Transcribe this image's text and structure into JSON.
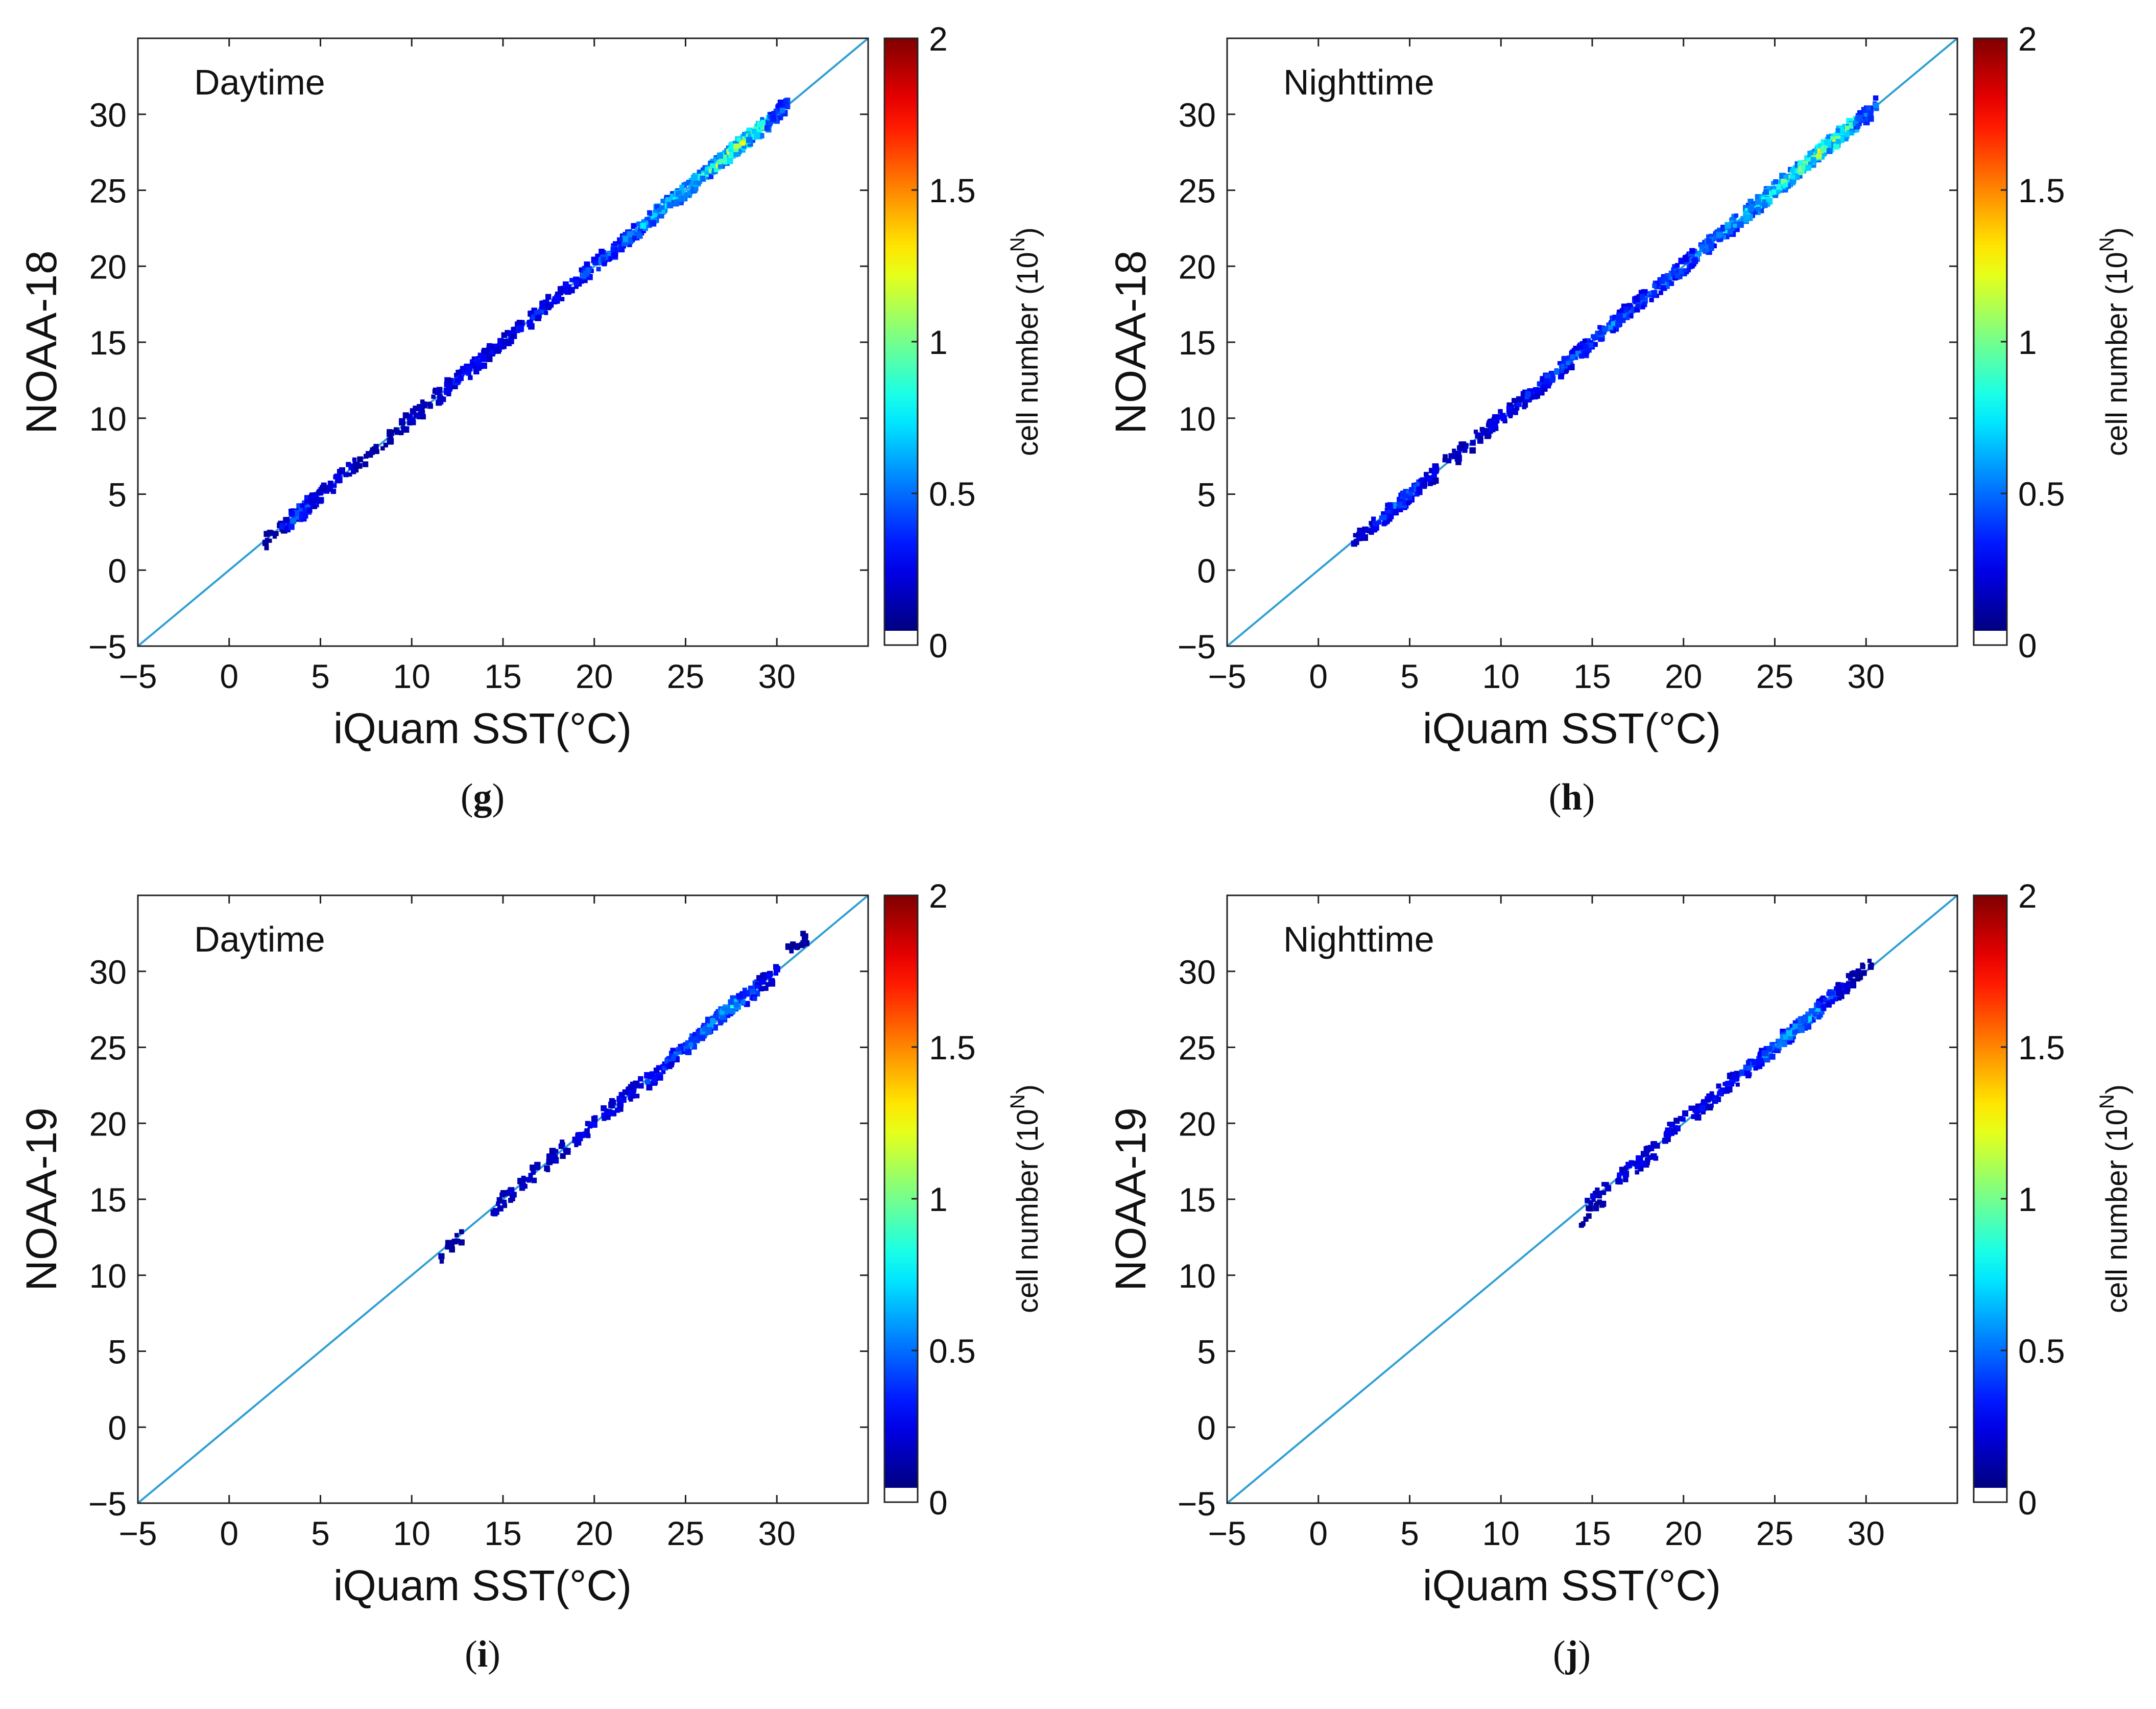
{
  "chart_data": [
    {
      "type": "heatmap",
      "caption": "g",
      "annotation": "Daytime",
      "xlabel": "iQuam SST(°C)",
      "ylabel": "NOAA-18",
      "xlim": [
        -5,
        35
      ],
      "ylim": [
        -5,
        35
      ],
      "xticks": [
        "−5",
        "0",
        "5",
        "10",
        "15",
        "20",
        "25",
        "30"
      ],
      "yticks": [
        "−5",
        "0",
        "5",
        "10",
        "15",
        "20",
        "25",
        "30"
      ],
      "reference_line": "1:1",
      "density_points": [
        [
          2.5,
          2.4,
          0.1
        ],
        [
          3.5,
          3.5,
          0.3
        ],
        [
          4,
          3.9,
          0.6
        ],
        [
          4.5,
          4.4,
          0.5
        ],
        [
          5,
          4.9,
          0.3
        ],
        [
          6.3,
          6.3,
          0.3
        ],
        [
          7.5,
          7.3,
          0.1
        ],
        [
          9,
          8.9,
          0.1
        ],
        [
          10,
          10,
          0.2
        ],
        [
          11,
          11,
          0.2
        ],
        [
          12,
          12,
          0.3
        ],
        [
          13,
          13.1,
          0.4
        ],
        [
          13.5,
          13.4,
          0.4
        ],
        [
          14.5,
          14.5,
          0.3
        ],
        [
          15.5,
          15.5,
          0.3
        ],
        [
          17,
          17,
          0.4
        ],
        [
          18,
          18,
          0.3
        ],
        [
          19,
          19,
          0.4
        ],
        [
          20,
          20,
          0.5
        ],
        [
          21,
          21,
          0.5
        ],
        [
          22,
          22,
          0.6
        ],
        [
          23,
          23,
          0.7
        ],
        [
          24,
          24.1,
          0.8
        ],
        [
          25,
          25,
          0.9
        ],
        [
          26,
          26,
          1.0
        ],
        [
          27,
          27,
          1.2
        ],
        [
          28,
          28,
          1.3
        ],
        [
          29,
          29,
          1.1
        ],
        [
          30,
          30,
          0.6
        ]
      ],
      "colorbar": {
        "label": "cell number (10",
        "superscript": "N",
        "label_end": ")",
        "ticks": [
          "0",
          "0.5",
          "1",
          "1.5",
          "2"
        ],
        "range": [
          0,
          2
        ]
      }
    },
    {
      "type": "heatmap",
      "caption": "h",
      "annotation": "Nighttime",
      "xlabel": "iQuam SST(°C)",
      "ylabel": "NOAA-18",
      "xlim": [
        -5,
        35
      ],
      "ylim": [
        -5,
        35
      ],
      "xticks": [
        "−5",
        "0",
        "5",
        "10",
        "15",
        "20",
        "25",
        "30"
      ],
      "yticks": [
        "−5",
        "0",
        "5",
        "10",
        "15",
        "20",
        "25",
        "30"
      ],
      "reference_line": "1:1",
      "density_points": [
        [
          2.5,
          2.4,
          0.2
        ],
        [
          3.5,
          3.4,
          0.4
        ],
        [
          4.5,
          4.4,
          0.6
        ],
        [
          5,
          5,
          0.5
        ],
        [
          6,
          6,
          0.3
        ],
        [
          7.5,
          7.5,
          0.2
        ],
        [
          9,
          9,
          0.2
        ],
        [
          10,
          10,
          0.3
        ],
        [
          11,
          11,
          0.3
        ],
        [
          12,
          12,
          0.4
        ],
        [
          13,
          13,
          0.5
        ],
        [
          14,
          14,
          0.5
        ],
        [
          15,
          15,
          0.5
        ],
        [
          16,
          16,
          0.6
        ],
        [
          17,
          17,
          0.5
        ],
        [
          18,
          18,
          0.5
        ],
        [
          19,
          19,
          0.6
        ],
        [
          20,
          20,
          0.6
        ],
        [
          21,
          21,
          0.7
        ],
        [
          22,
          22,
          0.7
        ],
        [
          23,
          23,
          0.8
        ],
        [
          24,
          24,
          0.9
        ],
        [
          25,
          25,
          1.0
        ],
        [
          26,
          26,
          1.1
        ],
        [
          27,
          27,
          1.2
        ],
        [
          28,
          28,
          1.3
        ],
        [
          29,
          29,
          1.2
        ],
        [
          30,
          30,
          0.6
        ]
      ],
      "colorbar": {
        "label": "cell number (10",
        "superscript": "N",
        "label_end": ")",
        "ticks": [
          "0",
          "0.5",
          "1",
          "1.5",
          "2"
        ],
        "range": [
          0,
          2
        ]
      }
    },
    {
      "type": "heatmap",
      "caption": "i",
      "annotation": "Daytime",
      "xlabel": "iQuam SST(°C)",
      "ylabel": "NOAA-19",
      "xlim": [
        -5,
        35
      ],
      "ylim": [
        -5,
        35
      ],
      "xticks": [
        "−5",
        "0",
        "5",
        "10",
        "15",
        "20",
        "25",
        "30"
      ],
      "yticks": [
        "−5",
        "0",
        "5",
        "10",
        "15",
        "20",
        "25",
        "30"
      ],
      "reference_line": "1:1",
      "density_points": [
        [
          12.2,
          11.9,
          0.1
        ],
        [
          15,
          14.8,
          0.2
        ],
        [
          16.5,
          16.5,
          0.2
        ],
        [
          18,
          18,
          0.2
        ],
        [
          19.5,
          19.5,
          0.3
        ],
        [
          21,
          21,
          0.3
        ],
        [
          22,
          22,
          0.3
        ],
        [
          23.5,
          23.3,
          0.4
        ],
        [
          24.5,
          24.5,
          0.5
        ],
        [
          25.5,
          25.5,
          0.6
        ],
        [
          26.5,
          26.6,
          0.7
        ],
        [
          27.5,
          27.6,
          0.8
        ],
        [
          28.5,
          28.5,
          0.6
        ],
        [
          29.5,
          29.5,
          0.3
        ],
        [
          31.2,
          31.8,
          0.1
        ]
      ],
      "colorbar": {
        "label": "cell number (10",
        "superscript": "N",
        "label_end": ")",
        "ticks": [
          "0",
          "0.5",
          "1",
          "1.5",
          "2"
        ],
        "range": [
          0,
          2
        ]
      }
    },
    {
      "type": "heatmap",
      "caption": "j",
      "annotation": "Nighttime",
      "xlabel": "iQuam SST(°C)",
      "ylabel": "NOAA-19",
      "xlim": [
        -5,
        35
      ],
      "ylim": [
        -5,
        35
      ],
      "xticks": [
        "−5",
        "0",
        "5",
        "10",
        "15",
        "20",
        "25",
        "30"
      ],
      "yticks": [
        "−5",
        "0",
        "5",
        "10",
        "15",
        "20",
        "25",
        "30"
      ],
      "reference_line": "1:1",
      "density_points": [
        [
          15,
          14.2,
          0.1
        ],
        [
          15.3,
          15.4,
          0.2
        ],
        [
          17,
          17,
          0.3
        ],
        [
          18,
          17.8,
          0.3
        ],
        [
          19.5,
          19.7,
          0.3
        ],
        [
          21,
          21,
          0.3
        ],
        [
          22,
          22,
          0.3
        ],
        [
          23,
          23,
          0.4
        ],
        [
          24,
          24,
          0.5
        ],
        [
          25,
          25,
          0.6
        ],
        [
          26,
          26,
          0.7
        ],
        [
          27,
          27,
          0.7
        ],
        [
          28,
          28.2,
          0.5
        ],
        [
          29,
          29.2,
          0.3
        ],
        [
          29.8,
          30.1,
          0.1
        ]
      ],
      "colorbar": {
        "label": "cell number (10",
        "superscript": "N",
        "label_end": ")",
        "ticks": [
          "0",
          "0.5",
          "1",
          "1.5",
          "2"
        ],
        "range": [
          0,
          2
        ]
      }
    }
  ]
}
